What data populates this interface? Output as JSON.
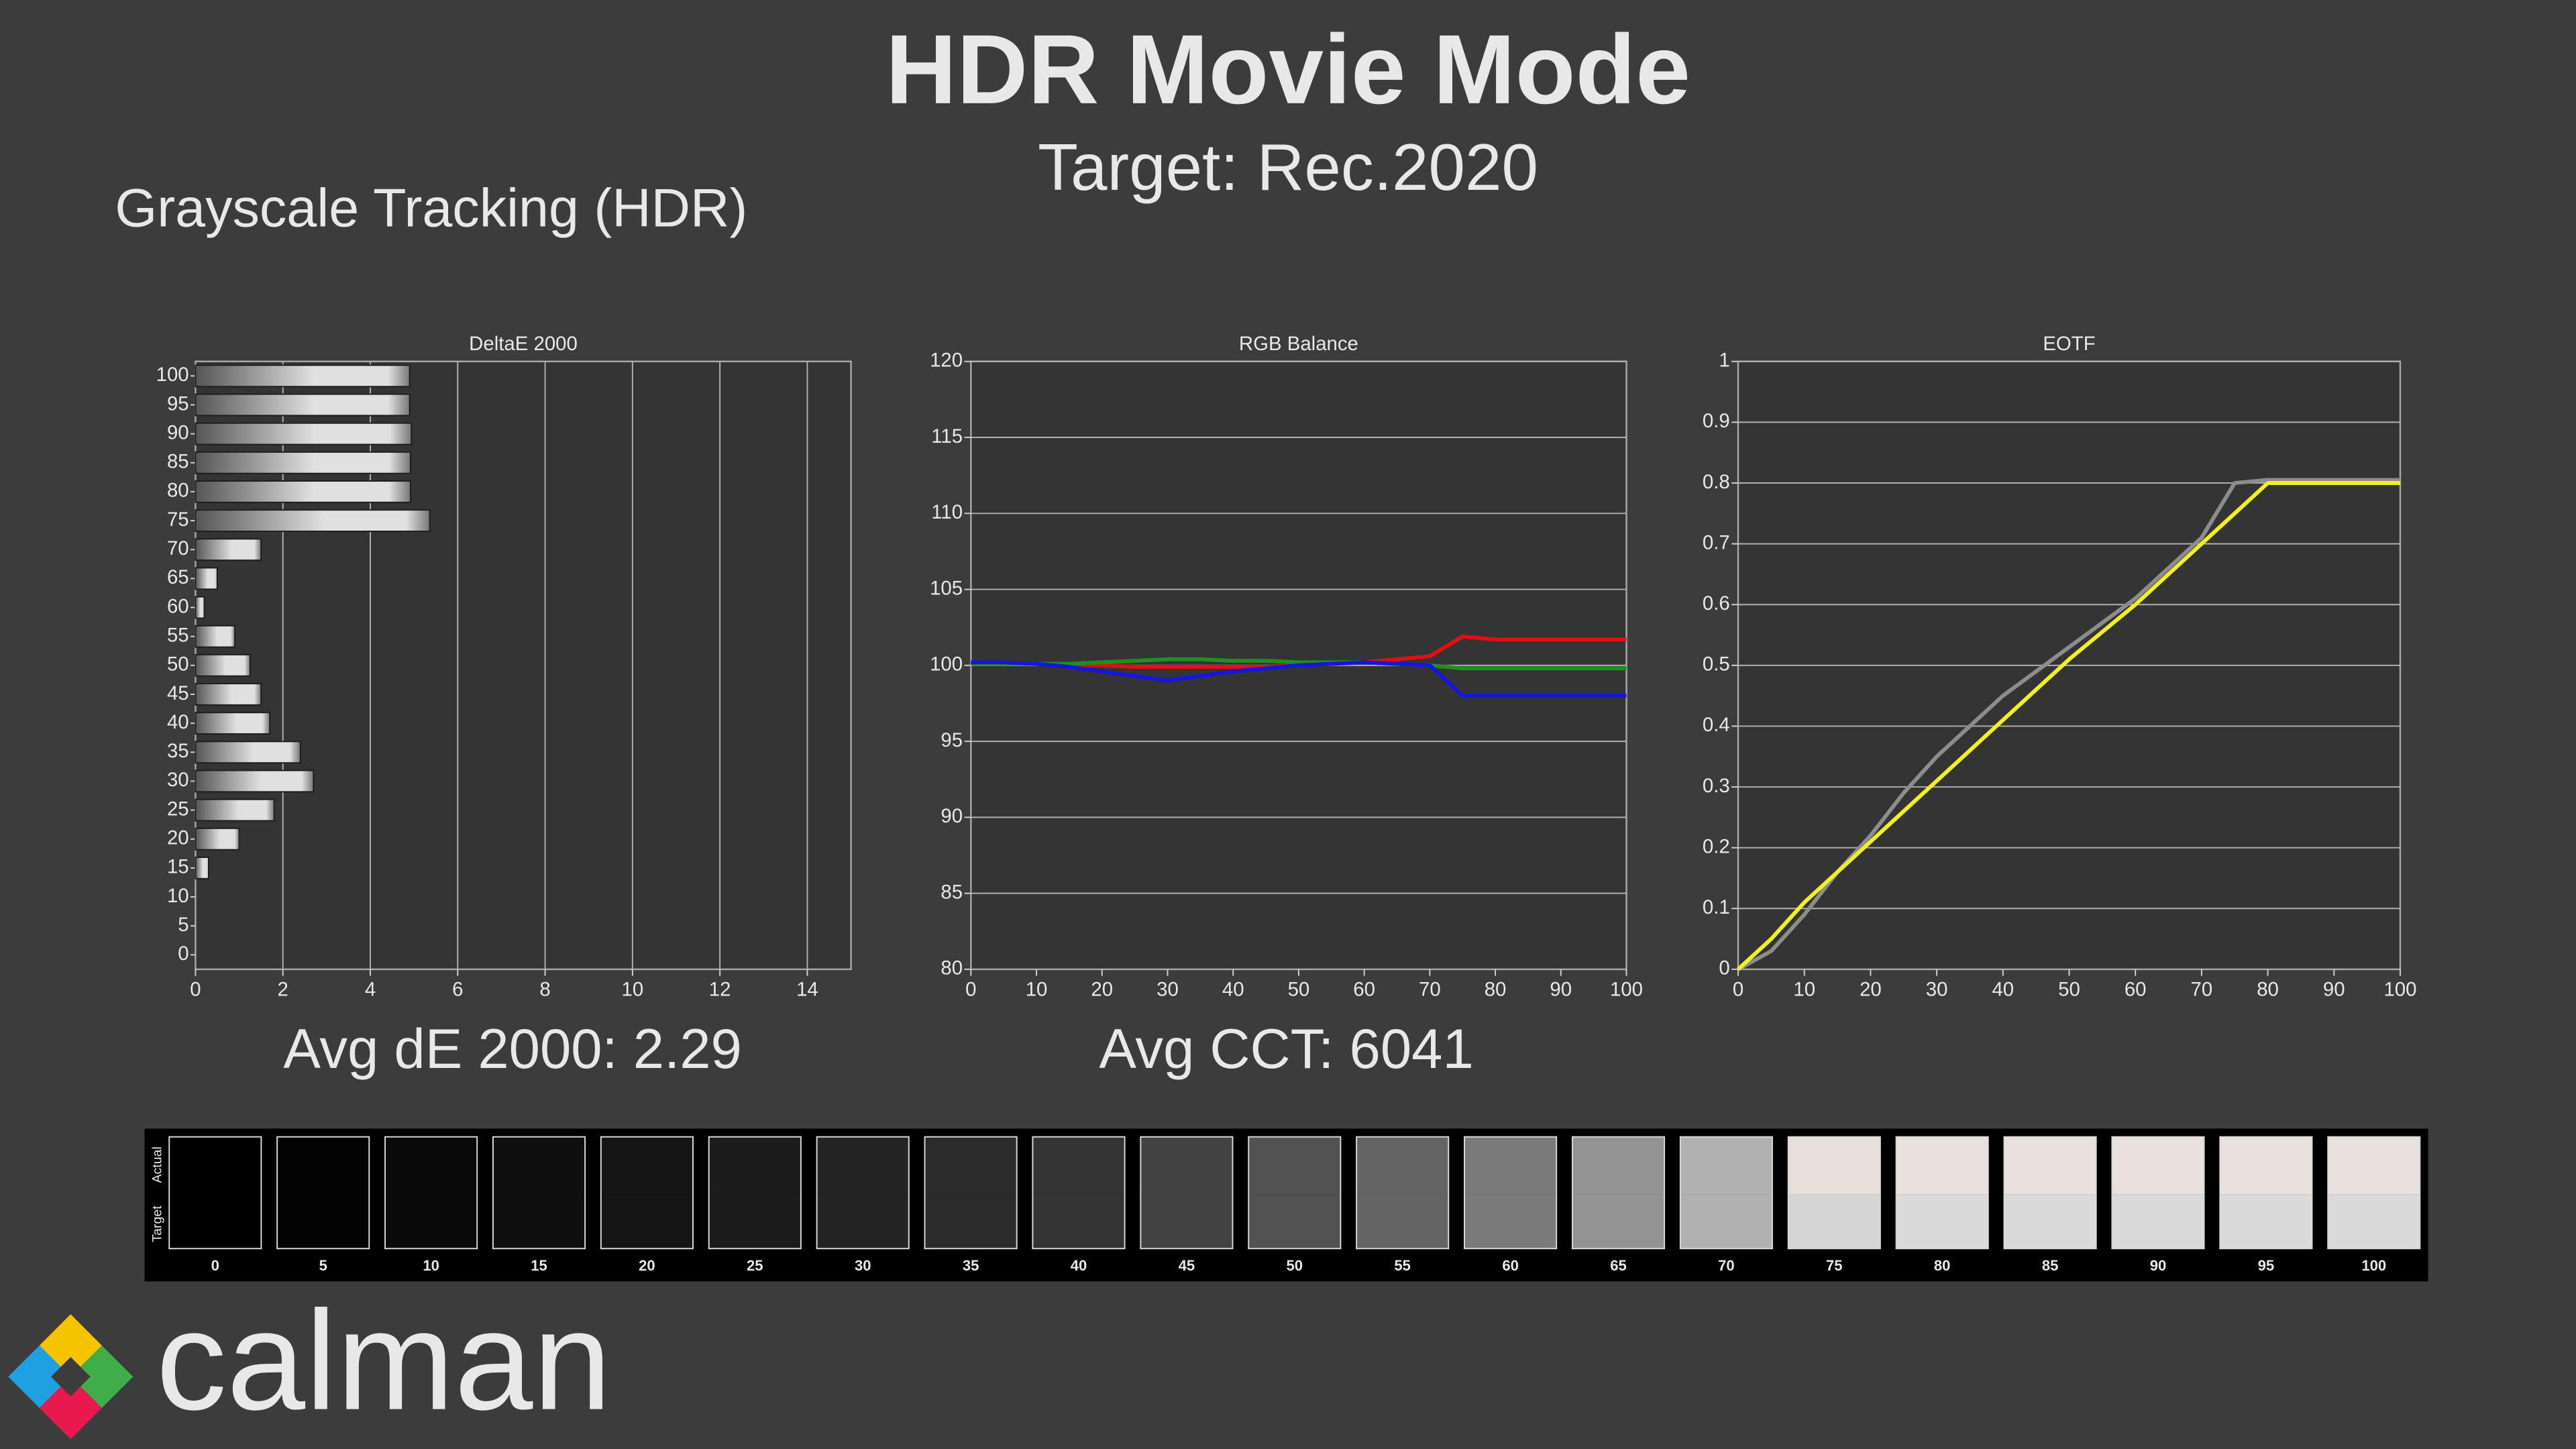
{
  "header": {
    "title": "HDR Movie Mode",
    "subtitle": "Target: Rec.2020",
    "section": "Grayscale Tracking (HDR)"
  },
  "chart_data": [
    {
      "type": "hbar",
      "title": "DeltaE 2000",
      "categories": [
        "100",
        "95",
        "90",
        "85",
        "80",
        "75",
        "70",
        "65",
        "60",
        "55",
        "50",
        "45",
        "40",
        "35",
        "30",
        "25",
        "20",
        "15",
        "10",
        "5",
        "0"
      ],
      "values": [
        4.9,
        4.9,
        4.94,
        4.92,
        4.92,
        5.36,
        1.5,
        0.5,
        0.2,
        0.9,
        1.25,
        1.5,
        1.7,
        2.4,
        2.7,
        1.8,
        1.0,
        0.3,
        0,
        0,
        0
      ],
      "color": "#e0e0e0",
      "xlim": [
        0,
        15
      ],
      "xticks": [
        0,
        2,
        4,
        6,
        8,
        10,
        12,
        14
      ],
      "grid": "x",
      "summary": "Avg dE 2000: 2.29"
    },
    {
      "type": "line",
      "title": "RGB Balance",
      "x": [
        0,
        5,
        10,
        15,
        20,
        25,
        30,
        35,
        40,
        45,
        50,
        55,
        60,
        65,
        70,
        75,
        80,
        85,
        90,
        95,
        100
      ],
      "series": [
        {
          "color": "#e01010",
          "values": [
            100.2,
            100.2,
            100.1,
            100,
            100,
            99.9,
            99.9,
            99.9,
            99.9,
            99.9,
            100,
            100.1,
            100.2,
            100.4,
            100.6,
            101.9,
            101.7,
            101.7,
            101.7,
            101.7,
            101.7
          ]
        },
        {
          "color": "#1f8f1f",
          "values": [
            100.1,
            100.1,
            100.1,
            100.1,
            100.2,
            100.3,
            100.4,
            100.4,
            100.3,
            100.3,
            100.2,
            100.2,
            100.2,
            100.1,
            100,
            99.8,
            99.8,
            99.8,
            99.8,
            99.8,
            99.8
          ]
        },
        {
          "color": "#1515e0",
          "values": [
            100.2,
            100.2,
            100.1,
            99.9,
            99.6,
            99.3,
            99.0,
            99.3,
            99.6,
            99.8,
            100,
            100.1,
            100.2,
            100.1,
            100,
            98.0,
            98.0,
            98.0,
            98.0,
            98.0,
            98.0
          ]
        }
      ],
      "xlim": [
        0,
        100
      ],
      "xticks": [
        0,
        10,
        20,
        30,
        40,
        50,
        60,
        70,
        80,
        90,
        100
      ],
      "ylim": [
        80,
        120
      ],
      "yticks": [
        80,
        85,
        90,
        95,
        100,
        105,
        110,
        115,
        120
      ],
      "grid": "y",
      "summary": "Avg CCT: 6041"
    },
    {
      "type": "line",
      "title": "EOTF",
      "x": [
        0,
        5,
        10,
        15,
        20,
        25,
        30,
        35,
        40,
        45,
        50,
        55,
        60,
        65,
        70,
        75,
        80,
        85,
        90,
        95,
        100
      ],
      "series": [
        {
          "color": "#8c8c8c",
          "values": [
            0,
            0.03,
            0.09,
            0.16,
            0.22,
            0.29,
            0.35,
            0.4,
            0.45,
            0.49,
            0.53,
            0.57,
            0.61,
            0.66,
            0.71,
            0.8,
            0.805,
            0.805,
            0.805,
            0.805,
            0.805
          ]
        },
        {
          "color": "#f2f020",
          "values": [
            0,
            0.05,
            0.11,
            0.16,
            0.21,
            0.26,
            0.31,
            0.36,
            0.41,
            0.46,
            0.51,
            0.555,
            0.6,
            0.65,
            0.7,
            0.75,
            0.8,
            0.8,
            0.8,
            0.8,
            0.8
          ]
        }
      ],
      "xlim": [
        0,
        100
      ],
      "xticks": [
        0,
        10,
        20,
        30,
        40,
        50,
        60,
        70,
        80,
        90,
        100
      ],
      "ylim": [
        0,
        1
      ],
      "yticks": [
        0,
        0.1,
        0.2,
        0.3,
        0.4,
        0.5,
        0.6,
        0.7,
        0.8,
        0.9,
        1
      ],
      "grid": "y"
    }
  ],
  "swatches": {
    "row_labels": [
      "Actual",
      "Target"
    ],
    "labels": [
      "0",
      "5",
      "10",
      "15",
      "20",
      "25",
      "30",
      "35",
      "40",
      "45",
      "50",
      "55",
      "60",
      "65",
      "70",
      "75",
      "80",
      "85",
      "90",
      "95",
      "100"
    ],
    "actual": [
      "#000000",
      "#030303",
      "#0a0a0a",
      "#0f0f0f",
      "#151515",
      "#1c1c1c",
      "#242424",
      "#2b2b2b",
      "#343434",
      "#434343",
      "#525252",
      "#646464",
      "#7a7a7a",
      "#939393",
      "#b1b1b1",
      "#e8dfdb",
      "#e9e1dd",
      "#e9e1dd",
      "#e9e1dd",
      "#e9e1dd",
      "#e9e1dd"
    ],
    "target": [
      "#000000",
      "#030303",
      "#0a0a0a",
      "#0f0f0f",
      "#151515",
      "#1c1c1c",
      "#242424",
      "#2b2b2b",
      "#343434",
      "#434343",
      "#525252",
      "#646464",
      "#7a7a7a",
      "#939393",
      "#b1b1b1",
      "#d5d5d5",
      "#dadada",
      "#dadada",
      "#dadada",
      "#dadada",
      "#dadada"
    ]
  },
  "logo": "calman"
}
